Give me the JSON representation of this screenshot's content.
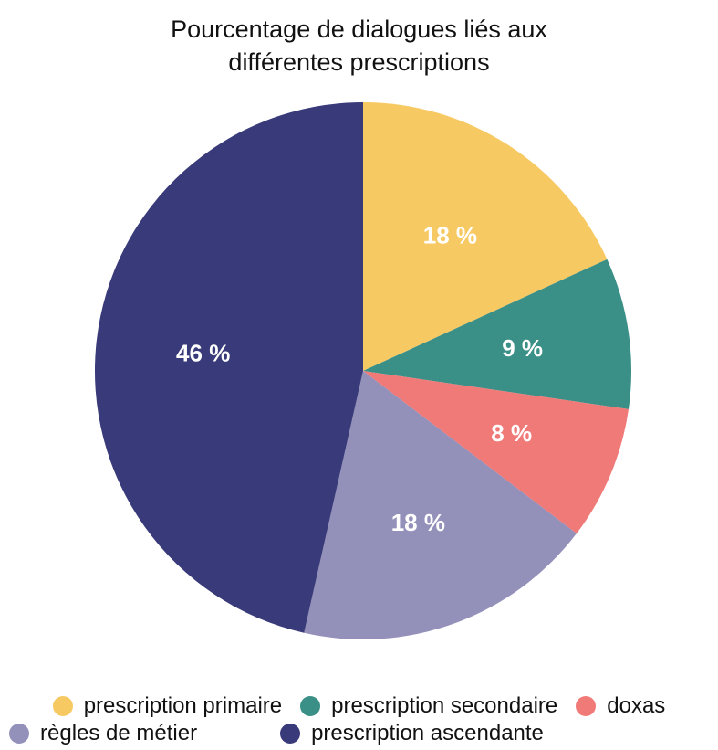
{
  "chart_data": {
    "type": "pie",
    "title_lines": [
      "Pourcentage de dialogues liés aux",
      "différentes prescriptions"
    ],
    "slices": [
      {
        "label": "prescription primaire",
        "value": 18,
        "display": "18 %",
        "color": "#F7C963"
      },
      {
        "label": "prescription secondaire",
        "value": 9,
        "display": "9 %",
        "color": "#3A8F87"
      },
      {
        "label": "doxas",
        "value": 8,
        "display": "8 %",
        "color": "#EF7A78"
      },
      {
        "label": "règles de métier",
        "value": 18,
        "display": "18 %",
        "color": "#9390BA"
      },
      {
        "label": "prescription ascendante",
        "value": 46,
        "display": "46 %",
        "color": "#393A79"
      }
    ],
    "start_angle_deg": 0,
    "direction": "clockwise",
    "legend_position": "bottom"
  },
  "legend": {
    "row1": [
      {
        "label": "prescription primaire",
        "color": "#F7C963"
      },
      {
        "label": "prescription secondaire",
        "color": "#3A8F87"
      },
      {
        "label": "doxas",
        "color": "#EF7A78"
      }
    ],
    "row2": [
      {
        "label": "règles de métier",
        "color": "#9390BA"
      },
      {
        "label": "prescription ascendante",
        "color": "#393A79"
      }
    ]
  }
}
